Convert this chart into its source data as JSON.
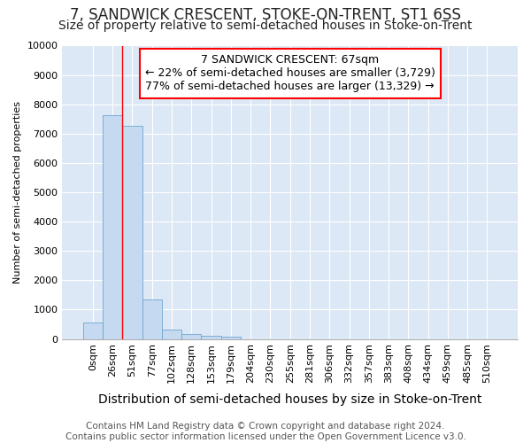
{
  "title": "7, SANDWICK CRESCENT, STOKE-ON-TRENT, ST1 6SS",
  "subtitle": "Size of property relative to semi-detached houses in Stoke-on-Trent",
  "xlabel": "Distribution of semi-detached houses by size in Stoke-on-Trent",
  "ylabel": "Number of semi-detached properties",
  "bar_labels": [
    "0sqm",
    "26sqm",
    "51sqm",
    "77sqm",
    "102sqm",
    "128sqm",
    "153sqm",
    "179sqm",
    "204sqm",
    "230sqm",
    "255sqm",
    "281sqm",
    "306sqm",
    "332sqm",
    "357sqm",
    "383sqm",
    "408sqm",
    "434sqm",
    "459sqm",
    "485sqm",
    "510sqm"
  ],
  "bar_values": [
    570,
    7620,
    7270,
    1360,
    310,
    155,
    100,
    90,
    0,
    0,
    0,
    0,
    0,
    0,
    0,
    0,
    0,
    0,
    0,
    0,
    0
  ],
  "bar_color": "#c5d9f0",
  "bar_edge_color": "#6ea6d0",
  "annotation_text_line1": "7 SANDWICK CRESCENT: 67sqm",
  "annotation_text_line2": "← 22% of semi-detached houses are smaller (3,729)",
  "annotation_text_line3": "77% of semi-detached houses are larger (13,329) →",
  "red_line_x": 1.5,
  "ylim": [
    0,
    10000
  ],
  "yticks": [
    0,
    1000,
    2000,
    3000,
    4000,
    5000,
    6000,
    7000,
    8000,
    9000,
    10000
  ],
  "footer_line1": "Contains HM Land Registry data © Crown copyright and database right 2024.",
  "footer_line2": "Contains public sector information licensed under the Open Government Licence v3.0.",
  "bg_color": "#ffffff",
  "plot_bg_color": "#dce8f5",
  "grid_color": "#ffffff",
  "title_fontsize": 12,
  "subtitle_fontsize": 10,
  "xlabel_fontsize": 10,
  "ylabel_fontsize": 8,
  "tick_fontsize": 8,
  "annotation_fontsize": 9,
  "footer_fontsize": 7.5
}
